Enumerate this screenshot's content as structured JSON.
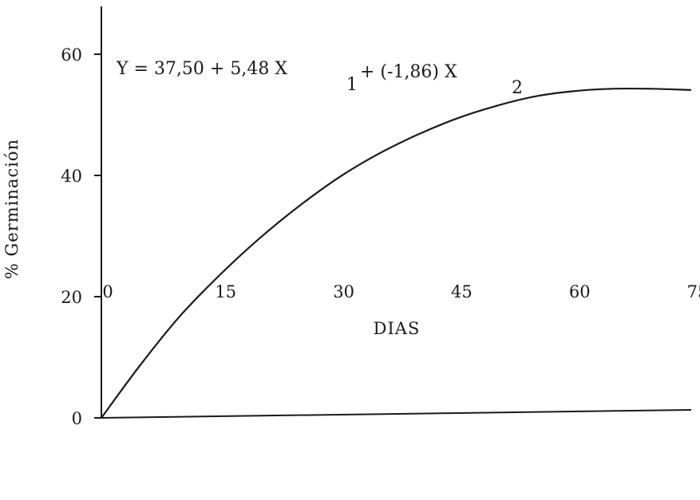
{
  "chart_data": {
    "type": "line",
    "title": "",
    "xlabel": "DIAS",
    "ylabel": "% Germinación",
    "xlim": [
      0,
      75
    ],
    "ylim": [
      0,
      60
    ],
    "x_ticks": [
      "0",
      "15",
      "30",
      "45",
      "60",
      "75"
    ],
    "y_ticks": [
      "0",
      "20",
      "40",
      "60"
    ],
    "grid": false,
    "annotation": {
      "text": "Y = 37,50 + 5,48 X",
      "sub1": "1",
      "mid": " + (-1,86) X",
      "sub2": "2"
    },
    "series": [
      {
        "x": [
          0,
          5,
          10,
          15,
          20,
          25,
          30,
          35,
          40,
          45,
          50,
          55,
          60,
          65,
          70,
          75
        ],
        "values": [
          0,
          8.8,
          16.8,
          23.5,
          29.5,
          34.8,
          39.5,
          43.4,
          46.6,
          49.3,
          51.4,
          53.0,
          53.9,
          54.3,
          54.3,
          54.1
        ]
      }
    ]
  }
}
